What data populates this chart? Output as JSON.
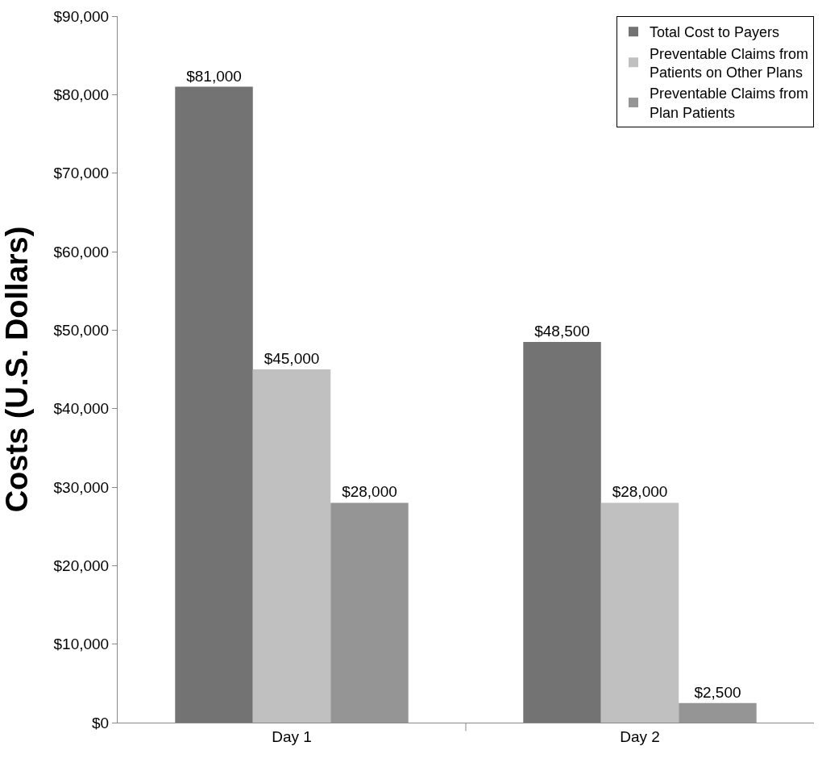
{
  "chart_data": {
    "type": "bar",
    "ylabel": "Costs (U.S. Dollars)",
    "categories": [
      "Day 1",
      "Day 2"
    ],
    "series": [
      {
        "name": "Total Cost to Payers",
        "color": "#737373",
        "values": [
          81000,
          48500
        ],
        "value_labels": [
          "$81,000",
          "$48,500"
        ]
      },
      {
        "name": "Preventable Claims from Patients on Other Plans",
        "color": "#c0c0c0",
        "values": [
          45000,
          28000
        ],
        "value_labels": [
          "$45,000",
          "$28,000"
        ]
      },
      {
        "name": "Preventable Claims from Plan Patients",
        "color": "#959595",
        "values": [
          28000,
          2500
        ],
        "value_labels": [
          "$28,000",
          "$2,500"
        ]
      }
    ],
    "ylim": [
      0,
      90000
    ],
    "yticks": [
      {
        "value": 0,
        "label": "$0"
      },
      {
        "value": 10000,
        "label": "$10,000"
      },
      {
        "value": 20000,
        "label": "$20,000"
      },
      {
        "value": 30000,
        "label": "$30,000"
      },
      {
        "value": 40000,
        "label": "$40,000"
      },
      {
        "value": 50000,
        "label": "$50,000"
      },
      {
        "value": 60000,
        "label": "$60,000"
      },
      {
        "value": 70000,
        "label": "$70,000"
      },
      {
        "value": 80000,
        "label": "$80,000"
      },
      {
        "value": 90000,
        "label": "$90,000"
      }
    ],
    "grid": false,
    "legend": "top right"
  }
}
